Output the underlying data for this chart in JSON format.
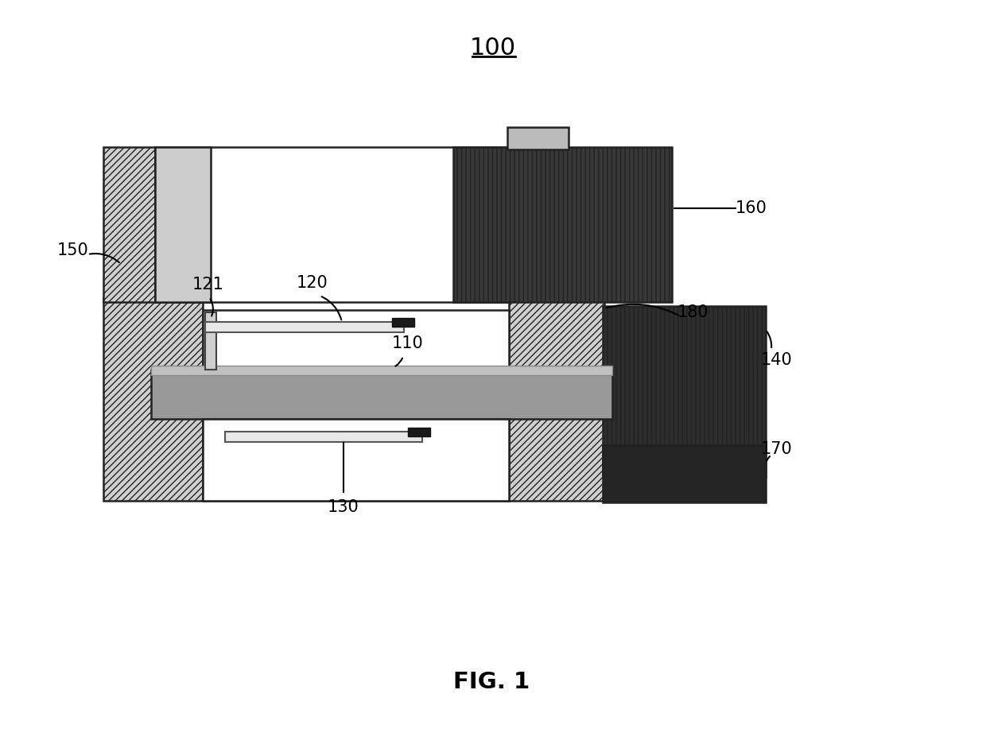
{
  "title": "100",
  "fig_label": "FIG. 1",
  "background": "#ffffff",
  "colors": {
    "white": "#ffffff",
    "light_gray": "#cccccc",
    "mid_gray": "#aaaaaa",
    "gray": "#999999",
    "dark_gray": "#3a3a3a",
    "black": "#1a1a1a",
    "outline": "#222222",
    "hatch_bg": "#d4d4d4"
  }
}
